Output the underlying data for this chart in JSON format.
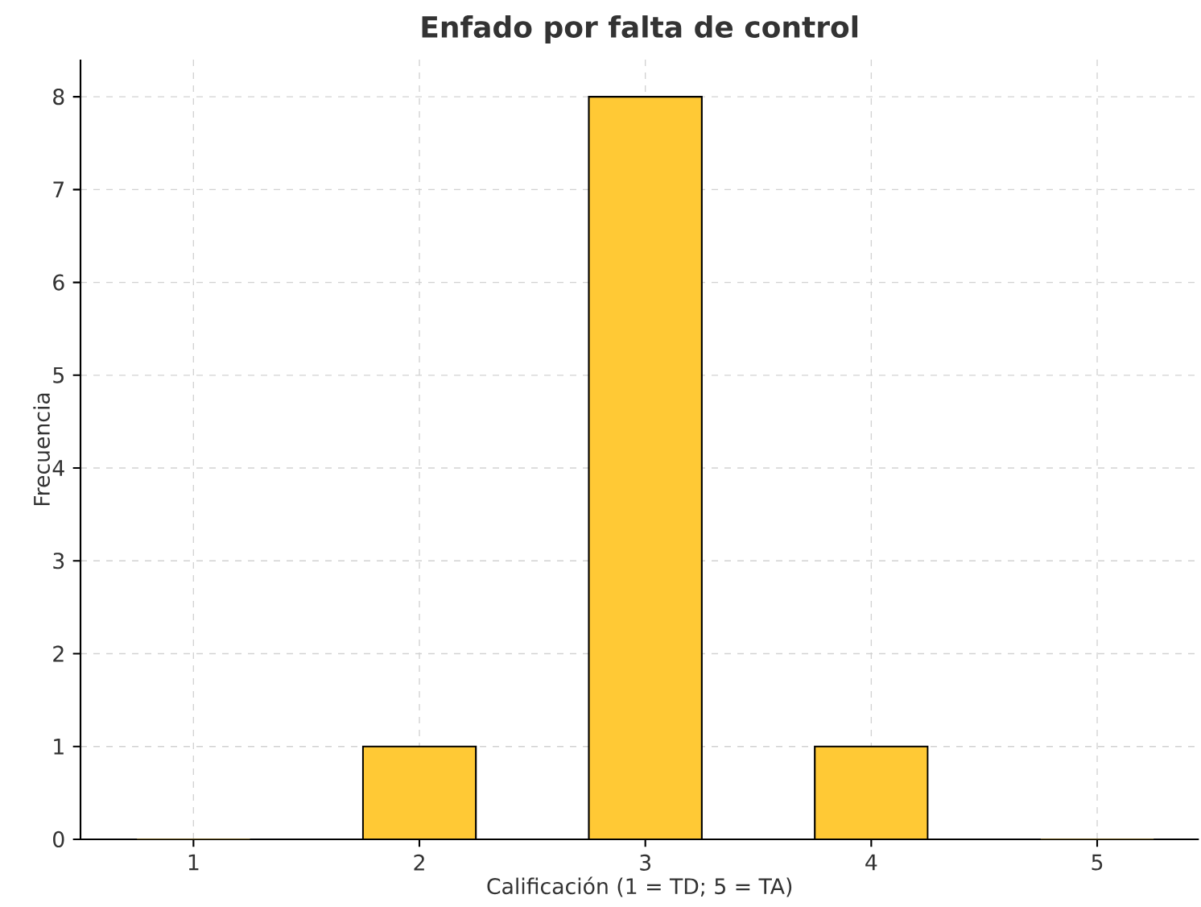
{
  "chart_data": {
    "type": "bar",
    "title": "Enfado por falta de control",
    "xlabel": "Calificación (1 = TD; 5 = TA)",
    "ylabel": "Frecuencia",
    "categories": [
      "1",
      "2",
      "3",
      "4",
      "5"
    ],
    "values": [
      0,
      1,
      8,
      1,
      0
    ],
    "color": "#ffc935",
    "ylim": [
      0,
      8.4
    ],
    "yticks": [
      0,
      1,
      2,
      3,
      4,
      5,
      6,
      7,
      8
    ],
    "grid": true
  }
}
